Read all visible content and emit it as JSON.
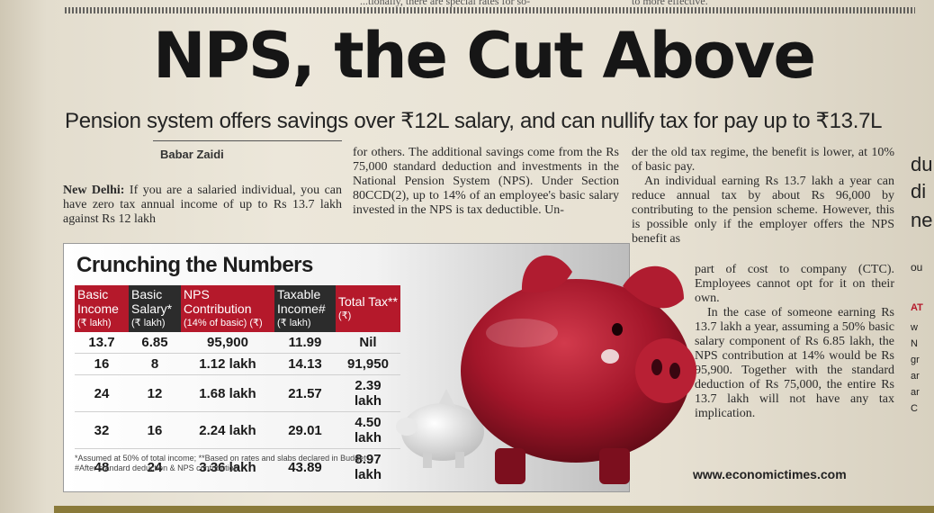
{
  "top_fragments": [
    "...tionally, there are special rates for so-",
    "to more effective."
  ],
  "headline": "NPS, the Cut Above",
  "subheadline": "Pension system offers savings over ₹12L salary, and can nullify tax for pay up to ₹13.7L",
  "byline": "Babar Zaidi",
  "article": {
    "dateline": "New Delhi:",
    "col1": " If you are a salaried individual, you can have zero tax annual income of up to Rs 13.7 lakh against Rs 12 lakh",
    "col2": "for others. The additional savings come from the Rs 75,000 standard deduction and investments in the National Pension System (NPS). Under Section 80CCD(2), up to 14% of an employee's basic salary invested in the NPS is tax deductible. Un-",
    "col3_p1": "der the old tax regime, the benefit is lower, at 10% of basic pay.",
    "col3_p2": "An individual earning Rs 13.7 lakh a year can reduce annual tax by about Rs 96,000 by contributing to the pension scheme. However, this is possible only if the employer offers the NPS benefit as",
    "col3b_p1": "part of cost to company (CTC). Employees cannot opt for it on their own.",
    "col3b_p2": "In the case of someone earning Rs 13.7 lakh a year, assuming a 50% basic salary component of Rs 6.85 lakh, the NPS contribution at 14% would be Rs 95,900. Together with the standard deduction of Rs 75,000, the entire Rs 13.7 lakh will not have any tax implication."
  },
  "edge_fragments": [
    "du",
    "di",
    "ne",
    "ou",
    "AT",
    "w",
    "N",
    "gr",
    "ar",
    "ar",
    "C"
  ],
  "table": {
    "title": "Crunching the Numbers",
    "headers": [
      {
        "label": "Basic Income",
        "unit": "(₹ lakh)"
      },
      {
        "label": "Basic Salary*",
        "unit": "(₹ lakh)"
      },
      {
        "label": "NPS Contribution",
        "unit": "(14% of basic) (₹)"
      },
      {
        "label": "Taxable Income#",
        "unit": "(₹ lakh)"
      },
      {
        "label": "Total Tax**",
        "unit": "(₹)"
      }
    ],
    "rows": [
      [
        "13.7",
        "6.85",
        "95,900",
        "11.99",
        "Nil"
      ],
      [
        "16",
        "8",
        "1.12 lakh",
        "14.13",
        "91,950"
      ],
      [
        "24",
        "12",
        "1.68 lakh",
        "21.57",
        "2.39 lakh"
      ],
      [
        "32",
        "16",
        "2.24 lakh",
        "29.01",
        "4.50 lakh"
      ],
      [
        "48",
        "24",
        "3.36 lakh",
        "43.89",
        "8.97 lakh"
      ]
    ],
    "footnote_1": "*Assumed at 50% of total income; **Based on rates and slabs declared in Budget",
    "footnote_2": "#After standard deduction & NPS contribution"
  },
  "website": "www.economictimes.com",
  "colors": {
    "red": "#b5192b",
    "dark": "#2c2c2c",
    "pig": "#a3162a"
  }
}
